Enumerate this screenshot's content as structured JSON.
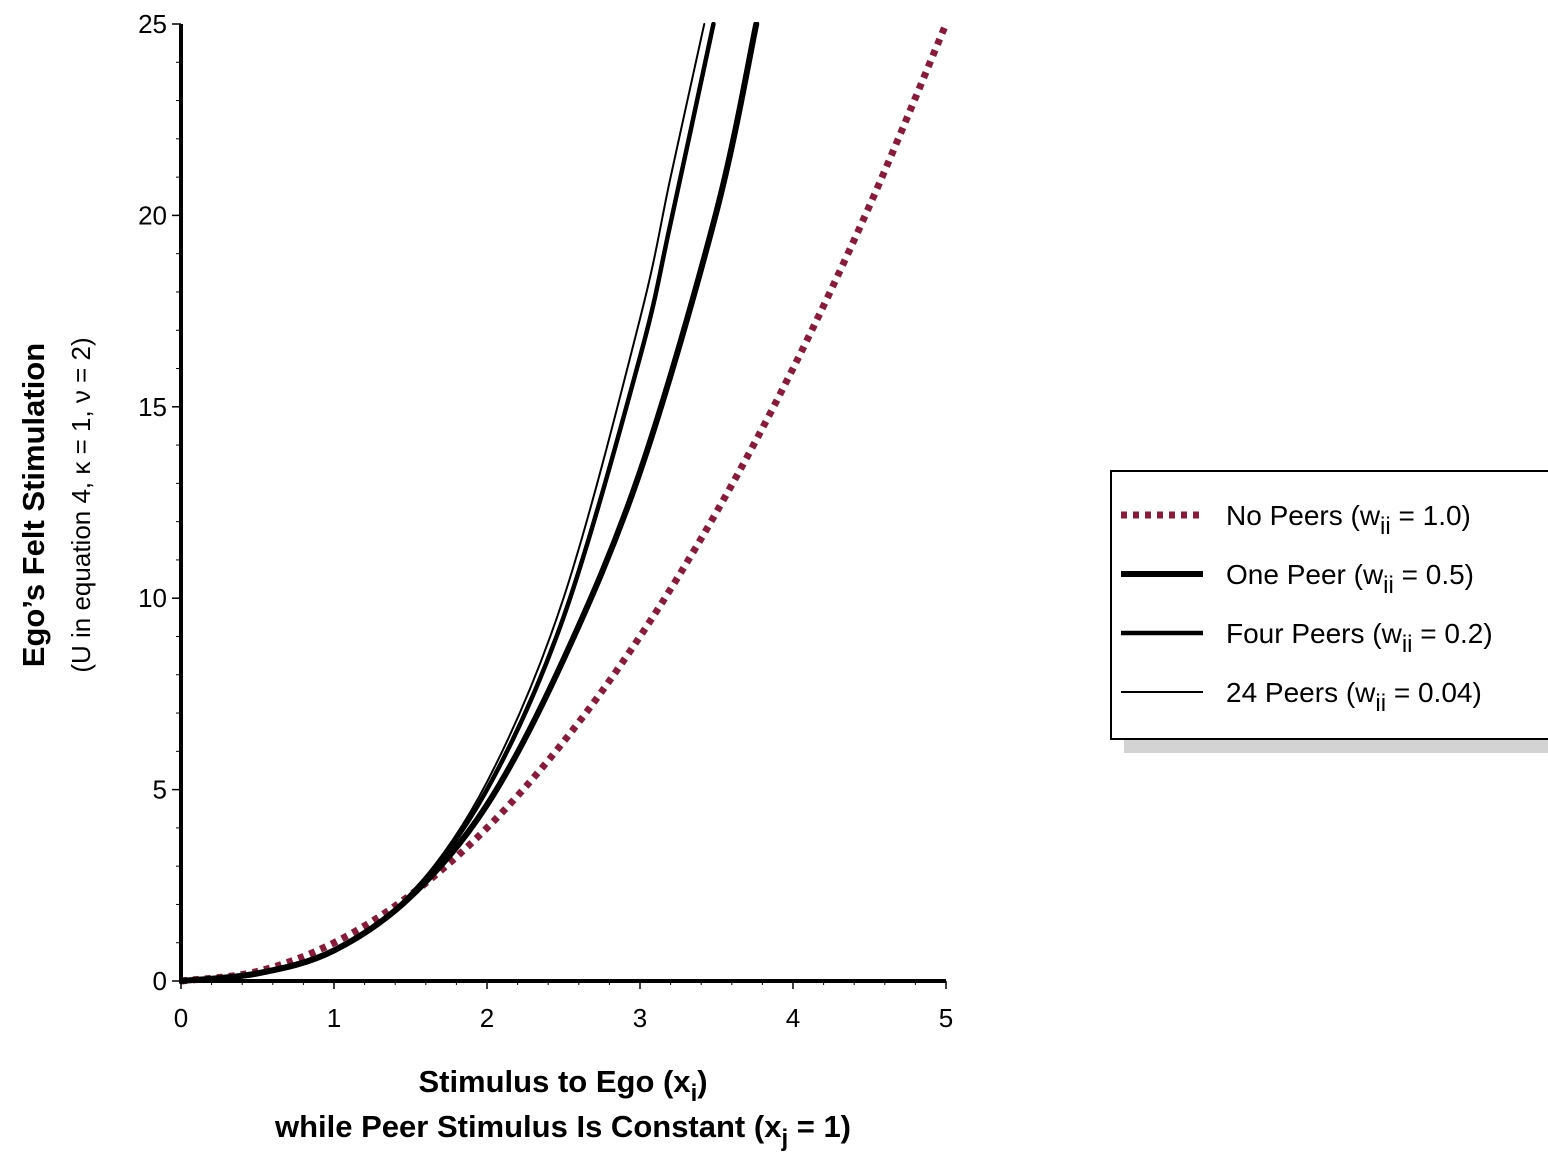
{
  "chart_data": {
    "type": "line",
    "title": "",
    "xlabel": {
      "line1_prefix": "Stimulus to Ego (x",
      "line1_sub": "i",
      "line1_suffix": ")",
      "line2_prefix": "while Peer Stimulus Is Constant (x",
      "line2_sub": "j",
      "line2_suffix": " = 1)"
    },
    "ylabel": {
      "main": "Ego’s Felt Stimulation",
      "sub": "(U in equation 4, κ = 1, ν = 2)"
    },
    "xlim": [
      0,
      5
    ],
    "ylim": [
      0,
      25
    ],
    "x_ticks": [
      0,
      1,
      2,
      3,
      4,
      5
    ],
    "y_ticks": [
      0,
      5,
      10,
      15,
      20,
      25
    ],
    "x_tick_labels": [
      "0",
      "1",
      "2",
      "3",
      "4",
      "5"
    ],
    "y_tick_labels": [
      "0",
      "5",
      "10",
      "15",
      "20",
      "25"
    ],
    "grid": false,
    "legend_position": "right",
    "series": [
      {
        "name": "No Peers",
        "legend_prefix": "No Peers (w",
        "legend_sub": "ii",
        "legend_suffix": " = 1.0)",
        "style": "dotted",
        "color": "#8B1A3A",
        "x": [
          0,
          0.5,
          1,
          1.5,
          2,
          2.5,
          3,
          3.5,
          4,
          4.5,
          5
        ],
        "y": [
          0,
          0.25,
          1,
          2.25,
          4,
          6.25,
          9,
          12.25,
          16,
          20.25,
          25
        ]
      },
      {
        "name": "One Peer",
        "legend_prefix": "One Peer (w",
        "legend_sub": "ii",
        "legend_suffix": " = 0.5)",
        "style": "thick",
        "color": "#000000",
        "x": [
          0,
          0.5,
          1,
          1.5,
          2,
          2.5,
          3,
          3.5,
          3.76
        ],
        "y": [
          0,
          0.2,
          0.8,
          2.2,
          4.6,
          8.4,
          13.3,
          20.1,
          25
        ]
      },
      {
        "name": "Four Peers",
        "legend_prefix": "Four Peers (w",
        "legend_sub": "ii",
        "legend_suffix": " = 0.2)",
        "style": "medium",
        "color": "#000000",
        "x": [
          0,
          0.5,
          1,
          1.5,
          2,
          2.5,
          3,
          3.2,
          3.48
        ],
        "y": [
          0,
          0.18,
          0.78,
          2.25,
          5.0,
          9.5,
          16.3,
          19.8,
          25
        ]
      },
      {
        "name": "24 Peers",
        "legend_prefix": "24 Peers (w",
        "legend_sub": "ii",
        "legend_suffix": " = 0.04)",
        "style": "thin",
        "color": "#000000",
        "x": [
          0,
          0.5,
          1,
          1.5,
          2,
          2.5,
          3,
          3.2,
          3.42
        ],
        "y": [
          0,
          0.17,
          0.76,
          2.27,
          5.2,
          10.0,
          17.3,
          21.0,
          25
        ]
      }
    ]
  }
}
